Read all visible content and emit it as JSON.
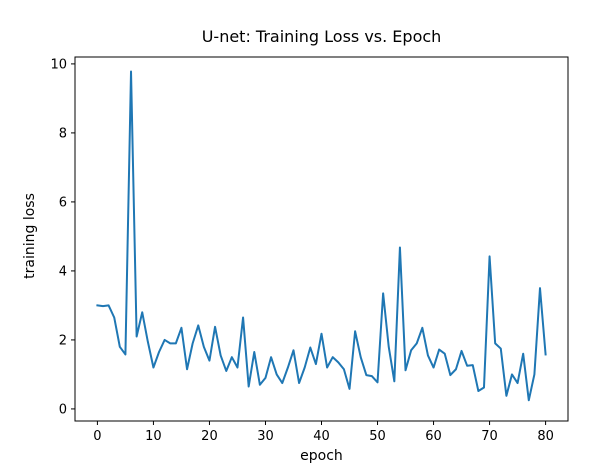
{
  "chart_data": {
    "type": "line",
    "title": "U-net: Training Loss vs. Epoch",
    "xlabel": "epoch",
    "ylabel": "training loss",
    "xlim": [
      -4,
      84
    ],
    "ylim": [
      -0.35,
      10.2
    ],
    "xticks": [
      0,
      10,
      20,
      30,
      40,
      50,
      60,
      70,
      80
    ],
    "yticks": [
      0,
      2,
      4,
      6,
      8,
      10
    ],
    "grid": false,
    "legend": false,
    "line_color": "#1f77b4",
    "series": [
      {
        "x": [
          0,
          1,
          2,
          3,
          4,
          5,
          6,
          7,
          8,
          9,
          10,
          11,
          12,
          13,
          14,
          15,
          16,
          17,
          18,
          19,
          20,
          21,
          22,
          23,
          24,
          25,
          26,
          27,
          28,
          29,
          30,
          31,
          32,
          33,
          34,
          35,
          36,
          37,
          38,
          39,
          40,
          41,
          42,
          43,
          44,
          45,
          46,
          47,
          48,
          49,
          50,
          51,
          52,
          53,
          54,
          55,
          56,
          57,
          58,
          59,
          60,
          61,
          62,
          63,
          64,
          65,
          66,
          67,
          68,
          69,
          70,
          71,
          72,
          73,
          74,
          75,
          76,
          77,
          78,
          79,
          80
        ],
        "values": [
          3.0,
          2.98,
          3.0,
          2.65,
          1.8,
          1.58,
          9.78,
          2.1,
          2.8,
          1.95,
          1.2,
          1.65,
          2.0,
          1.9,
          1.9,
          2.35,
          1.15,
          1.9,
          2.42,
          1.8,
          1.4,
          2.38,
          1.55,
          1.1,
          1.5,
          1.2,
          2.65,
          0.65,
          1.65,
          0.7,
          0.9,
          1.5,
          1.0,
          0.75,
          1.2,
          1.7,
          0.75,
          1.2,
          1.78,
          1.3,
          2.18,
          1.2,
          1.5,
          1.35,
          1.15,
          0.58,
          2.25,
          1.5,
          0.98,
          0.95,
          0.77,
          3.35,
          1.8,
          0.8,
          4.68,
          1.12,
          1.7,
          1.9,
          2.35,
          1.55,
          1.2,
          1.72,
          1.6,
          0.98,
          1.15,
          1.68,
          1.25,
          1.27,
          0.52,
          0.62,
          4.42,
          1.9,
          1.75,
          0.38,
          1.0,
          0.75,
          1.6,
          0.25,
          1.0,
          3.5,
          1.58
        ]
      }
    ]
  }
}
